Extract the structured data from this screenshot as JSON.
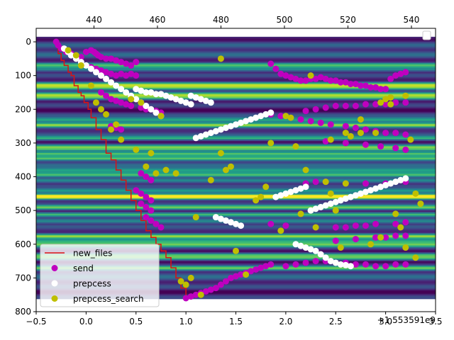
{
  "chart_data": {
    "type": "scatter",
    "title": "",
    "xlabel": "",
    "ylabel": "",
    "x_offset_label": "+1.553591e9",
    "xlim": [
      -0.5,
      3.5
    ],
    "ylim": [
      800,
      -40
    ],
    "top_xlim": [
      421.8,
      547.6
    ],
    "x_ticks": [
      -0.5,
      0.0,
      0.5,
      1.0,
      1.5,
      2.0,
      2.5,
      3.0,
      3.5
    ],
    "x_tick_labels": [
      "−0.5",
      "0.0",
      "0.5",
      "1.0",
      "1.5",
      "2.0",
      "2.5",
      "3.0",
      "3.5"
    ],
    "y_ticks": [
      0,
      100,
      200,
      300,
      400,
      500,
      600,
      700,
      800
    ],
    "y_tick_labels": [
      "0",
      "100",
      "200",
      "300",
      "400",
      "500",
      "600",
      "700",
      "800"
    ],
    "top_ticks": [
      440,
      460,
      480,
      500,
      520,
      540
    ],
    "top_tick_labels": [
      "440",
      "460",
      "480",
      "500",
      "520",
      "540"
    ],
    "background": {
      "type": "heatmap",
      "colormap": "viridis",
      "y_extent": [
        -15,
        760
      ],
      "bright_bands": [
        68,
        80,
        125,
        135,
        155,
        165,
        230,
        245,
        285,
        310,
        318,
        330,
        345,
        380,
        392,
        410,
        440,
        455,
        460,
        490,
        510,
        530,
        575,
        590,
        600,
        630,
        640,
        670
      ]
    },
    "legend_position": "lower left",
    "series": [
      {
        "name": "new_files",
        "style": "step-line",
        "color": "#dd1111",
        "x": [
          -0.28,
          -0.25,
          -0.22,
          -0.18,
          -0.15,
          -0.12,
          -0.08,
          -0.05,
          -0.02,
          0.02,
          0.05,
          0.1,
          0.15,
          0.2,
          0.25,
          0.3,
          0.35,
          0.4,
          0.45,
          0.5,
          0.55,
          0.6,
          0.65,
          0.7,
          0.75,
          0.8,
          0.85,
          0.9,
          0.95,
          1.0,
          1.03
        ],
        "y": [
          10,
          35,
          55,
          70,
          90,
          100,
          130,
          150,
          160,
          180,
          200,
          225,
          260,
          290,
          330,
          350,
          380,
          410,
          440,
          470,
          500,
          530,
          560,
          580,
          600,
          620,
          640,
          670,
          700,
          730,
          760
        ]
      },
      {
        "name": "send",
        "style": "markers",
        "color": "#bf00bf",
        "x": [
          -0.3,
          -0.28,
          -0.25,
          -0.2,
          -0.15,
          -0.1,
          -0.05,
          0.0,
          0.05,
          0.08,
          0.1,
          0.12,
          0.15,
          0.2,
          0.25,
          0.3,
          0.35,
          0.4,
          0.45,
          0.5,
          0.05,
          0.1,
          0.15,
          0.2,
          0.25,
          0.3,
          0.35,
          0.4,
          0.45,
          0.5,
          0.15,
          0.2,
          0.25,
          0.3,
          0.35,
          0.4,
          0.45,
          0.55,
          0.6,
          0.65,
          0.7,
          0.75,
          0.25,
          0.3,
          0.35,
          0.55,
          0.6,
          0.65,
          0.5,
          0.55,
          0.6,
          0.65,
          0.55,
          0.6,
          0.65,
          0.6,
          0.65,
          0.7,
          0.75,
          1.0,
          1.05,
          1.1,
          1.15,
          1.2,
          1.25,
          1.3,
          1.35,
          1.4,
          1.45,
          1.5,
          1.55,
          1.6,
          1.65,
          1.7,
          1.75,
          1.8,
          1.85,
          1.85,
          1.9,
          1.95,
          2.0,
          2.05,
          2.1,
          2.15,
          2.2,
          2.25,
          2.3,
          2.35,
          2.4,
          2.45,
          2.5,
          2.55,
          2.6,
          2.65,
          2.7,
          2.75,
          2.8,
          2.85,
          2.9,
          2.95,
          3.0,
          3.05,
          3.1,
          3.15,
          3.2,
          1.85,
          2.2,
          2.3,
          2.4,
          2.5,
          2.6,
          2.7,
          2.8,
          2.9,
          3.0,
          3.1,
          3.2,
          1.95,
          2.05,
          2.15,
          2.25,
          2.35,
          2.45,
          2.6,
          2.7,
          2.8,
          2.9,
          3.0,
          3.1,
          3.2,
          2.4,
          2.6,
          2.8,
          2.95,
          3.1,
          3.2,
          2.2,
          2.3,
          2.4,
          2.6,
          2.8,
          3.0,
          3.2,
          1.85,
          2.0,
          2.5,
          2.6,
          2.7,
          2.8,
          2.9,
          3.1,
          3.2,
          2.5,
          2.7,
          2.9,
          3.0,
          3.1,
          3.2,
          2.0,
          2.1,
          2.2,
          2.3,
          2.4,
          2.5,
          2.6,
          2.7,
          2.8,
          2.9,
          3.0,
          3.1,
          3.2
        ],
        "y": [
          0,
          10,
          20,
          30,
          35,
          40,
          45,
          30,
          25,
          30,
          35,
          40,
          45,
          50,
          50,
          55,
          60,
          65,
          70,
          60,
          75,
          80,
          85,
          90,
          95,
          100,
          95,
          100,
          95,
          100,
          150,
          160,
          170,
          175,
          180,
          185,
          190,
          195,
          200,
          200,
          205,
          210,
          250,
          255,
          260,
          390,
          400,
          410,
          440,
          450,
          460,
          470,
          480,
          490,
          500,
          520,
          530,
          540,
          550,
          760,
          755,
          750,
          745,
          740,
          735,
          730,
          720,
          710,
          700,
          695,
          690,
          685,
          680,
          675,
          670,
          665,
          660,
          65,
          80,
          95,
          100,
          105,
          110,
          115,
          115,
          110,
          110,
          105,
          110,
          115,
          115,
          120,
          120,
          125,
          125,
          130,
          130,
          135,
          135,
          140,
          140,
          110,
          100,
          95,
          90,
          215,
          205,
          200,
          195,
          190,
          190,
          190,
          185,
          185,
          185,
          180,
          180,
          220,
          225,
          230,
          235,
          240,
          245,
          250,
          255,
          260,
          265,
          270,
          270,
          275,
          295,
          300,
          305,
          310,
          315,
          320,
          420,
          415,
          415,
          420,
          420,
          420,
          415,
          540,
          545,
          550,
          550,
          545,
          545,
          540,
          540,
          535,
          590,
          585,
          580,
          580,
          575,
          575,
          665,
          660,
          655,
          650,
          650,
          655,
          655,
          660,
          660,
          665,
          665,
          660,
          660
        ]
      },
      {
        "name": "prepcess",
        "style": "markers",
        "color": "#ffffff",
        "x": [
          -0.22,
          -0.18,
          -0.15,
          -0.1,
          -0.05,
          0.0,
          0.05,
          0.1,
          0.15,
          0.2,
          0.25,
          0.3,
          0.35,
          0.4,
          0.45,
          0.5,
          0.55,
          0.6,
          0.65,
          0.7,
          0.75,
          0.5,
          0.55,
          0.6,
          0.65,
          0.7,
          0.75,
          0.8,
          0.85,
          0.9,
          0.95,
          1.0,
          1.05,
          1.1,
          1.15,
          1.2,
          1.25,
          1.3,
          1.35,
          1.4,
          1.45,
          1.5,
          1.55,
          1.6,
          1.65,
          1.7,
          1.75,
          1.8,
          1.85,
          1.9,
          1.95,
          2.0,
          2.05,
          2.1,
          2.15,
          2.2,
          2.25,
          2.3,
          2.35,
          2.4,
          2.45,
          2.5,
          2.55,
          2.6,
          2.65,
          2.7,
          2.75,
          2.8,
          2.85,
          2.9,
          2.95,
          3.0,
          3.05,
          3.1,
          3.15,
          3.2,
          1.05,
          1.1,
          1.15,
          1.2,
          1.25,
          1.3,
          1.35,
          1.4,
          1.45,
          1.5,
          1.55,
          2.1,
          2.15,
          2.2,
          2.25,
          2.3,
          2.35,
          2.4,
          2.45,
          2.5,
          2.55,
          2.6,
          2.65
        ],
        "y": [
          20,
          30,
          40,
          50,
          60,
          70,
          80,
          90,
          100,
          110,
          120,
          130,
          140,
          150,
          160,
          170,
          180,
          190,
          200,
          210,
          220,
          140,
          145,
          150,
          150,
          155,
          155,
          160,
          165,
          170,
          175,
          180,
          185,
          285,
          280,
          275,
          270,
          265,
          260,
          255,
          250,
          245,
          240,
          235,
          230,
          225,
          220,
          215,
          210,
          460,
          455,
          450,
          445,
          440,
          435,
          430,
          500,
          495,
          490,
          485,
          480,
          475,
          470,
          465,
          460,
          455,
          450,
          445,
          440,
          435,
          430,
          425,
          420,
          415,
          410,
          405,
          160,
          165,
          170,
          175,
          180,
          520,
          525,
          530,
          535,
          540,
          545,
          600,
          605,
          610,
          615,
          620,
          630,
          640,
          650,
          655,
          660,
          662,
          665
        ]
      },
      {
        "name": "prepcess_search",
        "style": "markers",
        "color": "#bfbf00",
        "x": [
          -0.18,
          -0.1,
          -0.05,
          0.05,
          0.1,
          0.15,
          0.2,
          0.25,
          0.3,
          0.35,
          0.45,
          0.5,
          0.55,
          0.6,
          0.65,
          0.7,
          0.75,
          0.8,
          0.9,
          0.95,
          1.0,
          1.05,
          1.1,
          1.15,
          1.25,
          1.35,
          1.4,
          1.45,
          1.5,
          1.6,
          1.7,
          1.75,
          1.8,
          1.85,
          1.95,
          2.0,
          2.05,
          2.1,
          2.15,
          2.2,
          2.3,
          2.4,
          2.45,
          2.5,
          2.55,
          2.6,
          2.65,
          2.75,
          2.85,
          2.9,
          2.95,
          3.0,
          3.05,
          3.1,
          3.15,
          3.2,
          3.25,
          3.3,
          3.35,
          1.35,
          2.25,
          2.45,
          2.6,
          2.75,
          2.95,
          3.05,
          3.2,
          3.3
        ],
        "y": [
          25,
          40,
          70,
          130,
          180,
          200,
          215,
          260,
          245,
          290,
          170,
          320,
          180,
          370,
          330,
          390,
          220,
          380,
          390,
          710,
          720,
          700,
          520,
          750,
          410,
          330,
          380,
          370,
          620,
          690,
          470,
          460,
          430,
          300,
          560,
          220,
          225,
          310,
          510,
          380,
          550,
          415,
          450,
          500,
          610,
          270,
          280,
          230,
          600,
          270,
          580,
          170,
          185,
          510,
          550,
          160,
          290,
          450,
          480,
          50,
          100,
          290,
          420,
          270,
          180,
          165,
          610,
          640
        ]
      }
    ]
  },
  "legend": {
    "entries": [
      {
        "label": "new_files",
        "color": "#dd1111",
        "marker": "line"
      },
      {
        "label": "send",
        "color": "#bf00bf",
        "marker": "circle"
      },
      {
        "label": "prepcess",
        "color": "#ffffff",
        "marker": "circle"
      },
      {
        "label": "prepcess_search",
        "color": "#bfbf00",
        "marker": "circle"
      }
    ]
  }
}
